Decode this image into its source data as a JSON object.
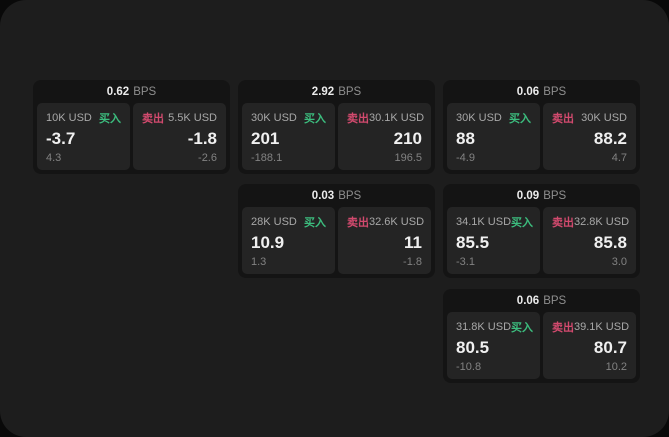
{
  "theme": {
    "backdrop_color": "#090909",
    "panel_color": "#1d1d1d",
    "card_color": "#141414",
    "tile_color": "#242424",
    "buy_color": "#3cbd7e",
    "sell_color": "#d24a6e",
    "text_primary": "#f0f0f0",
    "text_secondary": "#a8a8a8",
    "text_muted": "#828282"
  },
  "labels": {
    "bps_unit": "BPS",
    "buy": "买入",
    "sell": "卖出"
  },
  "cards": [
    {
      "bps": "0.62",
      "buy": {
        "amount": "10K USD",
        "price": "-3.7",
        "delta": "4.3"
      },
      "sell": {
        "amount": "5.5K USD",
        "price": "-1.8",
        "delta": "-2.6"
      }
    },
    {
      "bps": "2.92",
      "buy": {
        "amount": "30K USD",
        "price": "201",
        "delta": "-188.1"
      },
      "sell": {
        "amount": "30.1K USD",
        "price": "210",
        "delta": "196.5"
      }
    },
    {
      "bps": "0.06",
      "buy": {
        "amount": "30K USD",
        "price": "88",
        "delta": "-4.9"
      },
      "sell": {
        "amount": "30K USD",
        "price": "88.2",
        "delta": "4.7"
      }
    },
    {
      "bps": "0.03",
      "buy": {
        "amount": "28K USD",
        "price": "10.9",
        "delta": "1.3"
      },
      "sell": {
        "amount": "32.6K USD",
        "price": "11",
        "delta": "-1.8"
      }
    },
    {
      "bps": "0.09",
      "buy": {
        "amount": "34.1K USD",
        "price": "85.5",
        "delta": "-3.1"
      },
      "sell": {
        "amount": "32.8K USD",
        "price": "85.8",
        "delta": "3.0"
      }
    },
    {
      "bps": "0.06",
      "buy": {
        "amount": "31.8K USD",
        "price": "80.5",
        "delta": "-10.8"
      },
      "sell": {
        "amount": "39.1K USD",
        "price": "80.7",
        "delta": "10.2"
      }
    }
  ]
}
